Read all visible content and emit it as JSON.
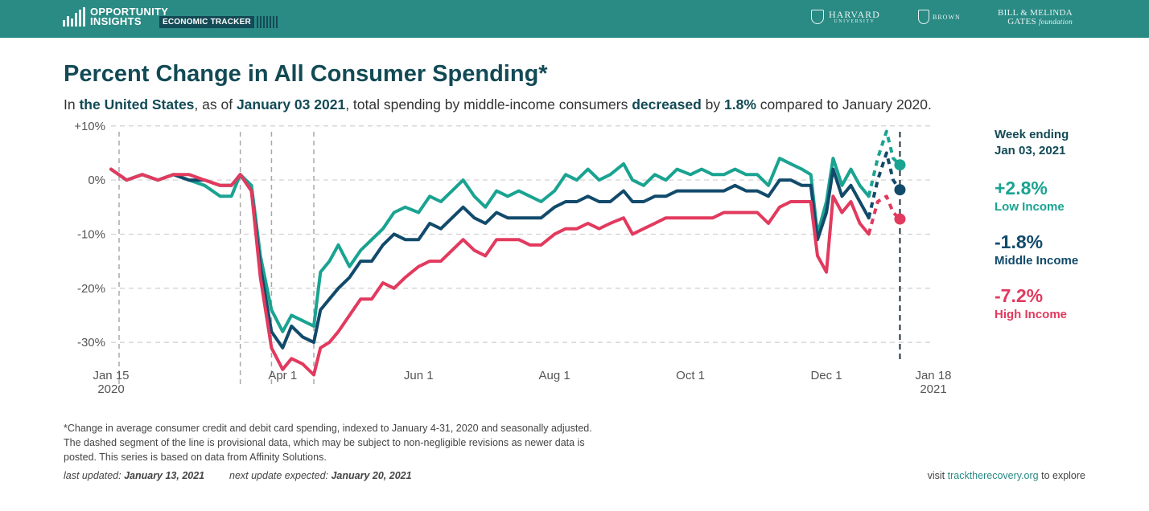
{
  "header": {
    "brand_line1": "OPPORTUNITY",
    "brand_line2": "INSIGHTS",
    "tracker_label": "ECONOMIC TRACKER",
    "partners": {
      "harvard": "HARVARD",
      "harvard_sub": "UNIVERSITY",
      "brown": "BROWN",
      "gates_line1": "BILL & MELINDA",
      "gates_line2": "GATES",
      "gates_line3": "foundation"
    },
    "bar_color": "#2a8a84"
  },
  "title": "Percent Change in All Consumer Spending*",
  "subtitle": {
    "p1": "In ",
    "region": "the United States",
    "p2": ", as of ",
    "date": "January 03 2021",
    "p3": ", total spending by middle-income consumers ",
    "direction": "decreased",
    "p4": " by ",
    "amount": "1.8%",
    "p5": " compared to January 2020."
  },
  "legend": {
    "heading_line1": "Week ending",
    "heading_line2": "Jan 03, 2021",
    "items": [
      {
        "value": "+2.8%",
        "name": "Low Income",
        "color": "#1aa391"
      },
      {
        "value": "-1.8%",
        "name": "Middle Income",
        "color": "#124a6b"
      },
      {
        "value": "-7.2%",
        "name": "High Income",
        "color": "#e23a5e"
      }
    ]
  },
  "footnote": {
    "line1": "*Change in average consumer credit and debit card spending, indexed to January 4-31, 2020 and seasonally adjusted.",
    "line2": "The dashed segment of the line is provisional data, which may be subject to non-negligible revisions as newer data is",
    "line3": "posted. This series is based on data from Affinity Solutions."
  },
  "updated": {
    "last_label": "last updated: ",
    "last_date": "January 13, 2021",
    "next_label": "next update expected: ",
    "next_date": "January 20, 2021"
  },
  "visit": {
    "prefix": "visit ",
    "link": "tracktherecovery.org",
    "suffix": " to explore"
  },
  "chart_data": {
    "type": "line",
    "title": "Percent Change in All Consumer Spending*",
    "x_axis": {
      "ticks": [
        {
          "date": "2020-01-15",
          "label": "Jan 15",
          "sublabel": "2020"
        },
        {
          "date": "2020-04-01",
          "label": "Apr 1",
          "sublabel": ""
        },
        {
          "date": "2020-06-01",
          "label": "Jun 1",
          "sublabel": ""
        },
        {
          "date": "2020-08-01",
          "label": "Aug 1",
          "sublabel": ""
        },
        {
          "date": "2020-10-01",
          "label": "Oct 1",
          "sublabel": ""
        },
        {
          "date": "2020-12-01",
          "label": "Dec 1",
          "sublabel": ""
        },
        {
          "date": "2021-01-18",
          "label": "Jan 18",
          "sublabel": "2021"
        }
      ],
      "range": [
        "2020-01-15",
        "2021-01-18"
      ]
    },
    "y_axis": {
      "ticks": [
        10,
        0,
        -10,
        -20,
        -30
      ],
      "tick_labels": [
        "+10%",
        "0%",
        "-10%",
        "-20%",
        "-30%"
      ],
      "range": [
        -38,
        11
      ]
    },
    "grid": "horizontal-dashed",
    "event_markers": [
      "2020-03-13",
      "2020-03-27",
      "2020-04-15"
    ],
    "latest_marker": "2021-01-03",
    "provisional_from": "2020-12-20",
    "series": [
      {
        "name": "Low Income",
        "color": "#1aa391",
        "points": [
          [
            "2020-01-15",
            2
          ],
          [
            "2020-01-22",
            0
          ],
          [
            "2020-01-29",
            1
          ],
          [
            "2020-02-05",
            0
          ],
          [
            "2020-02-12",
            1
          ],
          [
            "2020-02-19",
            0
          ],
          [
            "2020-02-26",
            -1
          ],
          [
            "2020-03-04",
            -3
          ],
          [
            "2020-03-09",
            -3
          ],
          [
            "2020-03-13",
            1
          ],
          [
            "2020-03-18",
            -1
          ],
          [
            "2020-03-22",
            -14
          ],
          [
            "2020-03-27",
            -24
          ],
          [
            "2020-04-01",
            -28
          ],
          [
            "2020-04-05",
            -25
          ],
          [
            "2020-04-10",
            -26
          ],
          [
            "2020-04-15",
            -27
          ],
          [
            "2020-04-18",
            -17
          ],
          [
            "2020-04-22",
            -15
          ],
          [
            "2020-04-26",
            -12
          ],
          [
            "2020-05-01",
            -16
          ],
          [
            "2020-05-06",
            -13
          ],
          [
            "2020-05-11",
            -11
          ],
          [
            "2020-05-16",
            -9
          ],
          [
            "2020-05-21",
            -6
          ],
          [
            "2020-05-26",
            -5
          ],
          [
            "2020-06-01",
            -6
          ],
          [
            "2020-06-06",
            -3
          ],
          [
            "2020-06-11",
            -4
          ],
          [
            "2020-06-16",
            -2
          ],
          [
            "2020-06-21",
            0
          ],
          [
            "2020-06-26",
            -3
          ],
          [
            "2020-07-01",
            -5
          ],
          [
            "2020-07-06",
            -2
          ],
          [
            "2020-07-11",
            -3
          ],
          [
            "2020-07-16",
            -2
          ],
          [
            "2020-07-21",
            -3
          ],
          [
            "2020-07-26",
            -4
          ],
          [
            "2020-08-01",
            -2
          ],
          [
            "2020-08-06",
            1
          ],
          [
            "2020-08-11",
            0
          ],
          [
            "2020-08-16",
            2
          ],
          [
            "2020-08-21",
            0
          ],
          [
            "2020-08-26",
            1
          ],
          [
            "2020-09-01",
            3
          ],
          [
            "2020-09-05",
            0
          ],
          [
            "2020-09-10",
            -1
          ],
          [
            "2020-09-15",
            1
          ],
          [
            "2020-09-20",
            0
          ],
          [
            "2020-09-25",
            2
          ],
          [
            "2020-10-01",
            1
          ],
          [
            "2020-10-06",
            2
          ],
          [
            "2020-10-11",
            1
          ],
          [
            "2020-10-16",
            1
          ],
          [
            "2020-10-21",
            2
          ],
          [
            "2020-10-26",
            1
          ],
          [
            "2020-10-31",
            1
          ],
          [
            "2020-11-05",
            -1
          ],
          [
            "2020-11-10",
            4
          ],
          [
            "2020-11-15",
            3
          ],
          [
            "2020-11-20",
            2
          ],
          [
            "2020-11-24",
            1
          ],
          [
            "2020-11-27",
            -10
          ],
          [
            "2020-12-01",
            -4
          ],
          [
            "2020-12-04",
            4
          ],
          [
            "2020-12-08",
            -1
          ],
          [
            "2020-12-12",
            2
          ],
          [
            "2020-12-16",
            -1
          ],
          [
            "2020-12-20",
            -3
          ],
          [
            "2020-12-24",
            4
          ],
          [
            "2020-12-28",
            9
          ],
          [
            "2020-12-31",
            4
          ],
          [
            "2021-01-03",
            2.8
          ]
        ]
      },
      {
        "name": "Middle Income",
        "color": "#124a6b",
        "points": [
          [
            "2020-01-15",
            2
          ],
          [
            "2020-01-22",
            0
          ],
          [
            "2020-01-29",
            1
          ],
          [
            "2020-02-05",
            0
          ],
          [
            "2020-02-12",
            1
          ],
          [
            "2020-02-19",
            0
          ],
          [
            "2020-02-26",
            0
          ],
          [
            "2020-03-04",
            -1
          ],
          [
            "2020-03-09",
            -1
          ],
          [
            "2020-03-13",
            1
          ],
          [
            "2020-03-18",
            -2
          ],
          [
            "2020-03-22",
            -16
          ],
          [
            "2020-03-27",
            -28
          ],
          [
            "2020-04-01",
            -31
          ],
          [
            "2020-04-05",
            -27
          ],
          [
            "2020-04-10",
            -29
          ],
          [
            "2020-04-15",
            -30
          ],
          [
            "2020-04-18",
            -24
          ],
          [
            "2020-04-22",
            -22
          ],
          [
            "2020-04-26",
            -20
          ],
          [
            "2020-05-01",
            -18
          ],
          [
            "2020-05-06",
            -15
          ],
          [
            "2020-05-11",
            -15
          ],
          [
            "2020-05-16",
            -12
          ],
          [
            "2020-05-21",
            -10
          ],
          [
            "2020-05-26",
            -11
          ],
          [
            "2020-06-01",
            -11
          ],
          [
            "2020-06-06",
            -8
          ],
          [
            "2020-06-11",
            -9
          ],
          [
            "2020-06-16",
            -7
          ],
          [
            "2020-06-21",
            -5
          ],
          [
            "2020-06-26",
            -7
          ],
          [
            "2020-07-01",
            -8
          ],
          [
            "2020-07-06",
            -6
          ],
          [
            "2020-07-11",
            -7
          ],
          [
            "2020-07-16",
            -7
          ],
          [
            "2020-07-21",
            -7
          ],
          [
            "2020-07-26",
            -7
          ],
          [
            "2020-08-01",
            -5
          ],
          [
            "2020-08-06",
            -4
          ],
          [
            "2020-08-11",
            -4
          ],
          [
            "2020-08-16",
            -3
          ],
          [
            "2020-08-21",
            -4
          ],
          [
            "2020-08-26",
            -4
          ],
          [
            "2020-09-01",
            -2
          ],
          [
            "2020-09-05",
            -4
          ],
          [
            "2020-09-10",
            -4
          ],
          [
            "2020-09-15",
            -3
          ],
          [
            "2020-09-20",
            -3
          ],
          [
            "2020-09-25",
            -2
          ],
          [
            "2020-10-01",
            -2
          ],
          [
            "2020-10-06",
            -2
          ],
          [
            "2020-10-11",
            -2
          ],
          [
            "2020-10-16",
            -2
          ],
          [
            "2020-10-21",
            -1
          ],
          [
            "2020-10-26",
            -2
          ],
          [
            "2020-10-31",
            -2
          ],
          [
            "2020-11-05",
            -3
          ],
          [
            "2020-11-10",
            0
          ],
          [
            "2020-11-15",
            0
          ],
          [
            "2020-11-20",
            -1
          ],
          [
            "2020-11-24",
            -1
          ],
          [
            "2020-11-27",
            -11
          ],
          [
            "2020-12-01",
            -6
          ],
          [
            "2020-12-04",
            2
          ],
          [
            "2020-12-08",
            -3
          ],
          [
            "2020-12-12",
            -1
          ],
          [
            "2020-12-16",
            -4
          ],
          [
            "2020-12-20",
            -7
          ],
          [
            "2020-12-24",
            0
          ],
          [
            "2020-12-28",
            5
          ],
          [
            "2020-12-31",
            0
          ],
          [
            "2021-01-03",
            -1.8
          ]
        ]
      },
      {
        "name": "High Income",
        "color": "#e23a5e",
        "points": [
          [
            "2020-01-15",
            2
          ],
          [
            "2020-01-22",
            0
          ],
          [
            "2020-01-29",
            1
          ],
          [
            "2020-02-05",
            0
          ],
          [
            "2020-02-12",
            1
          ],
          [
            "2020-02-19",
            1
          ],
          [
            "2020-02-26",
            0
          ],
          [
            "2020-03-04",
            -1
          ],
          [
            "2020-03-09",
            -1
          ],
          [
            "2020-03-13",
            1
          ],
          [
            "2020-03-18",
            -2
          ],
          [
            "2020-03-22",
            -18
          ],
          [
            "2020-03-27",
            -31
          ],
          [
            "2020-04-01",
            -35
          ],
          [
            "2020-04-05",
            -33
          ],
          [
            "2020-04-10",
            -34
          ],
          [
            "2020-04-15",
            -36
          ],
          [
            "2020-04-18",
            -31
          ],
          [
            "2020-04-22",
            -30
          ],
          [
            "2020-04-26",
            -28
          ],
          [
            "2020-05-01",
            -25
          ],
          [
            "2020-05-06",
            -22
          ],
          [
            "2020-05-11",
            -22
          ],
          [
            "2020-05-16",
            -19
          ],
          [
            "2020-05-21",
            -20
          ],
          [
            "2020-05-26",
            -18
          ],
          [
            "2020-06-01",
            -16
          ],
          [
            "2020-06-06",
            -15
          ],
          [
            "2020-06-11",
            -15
          ],
          [
            "2020-06-16",
            -13
          ],
          [
            "2020-06-21",
            -11
          ],
          [
            "2020-06-26",
            -13
          ],
          [
            "2020-07-01",
            -14
          ],
          [
            "2020-07-06",
            -11
          ],
          [
            "2020-07-11",
            -11
          ],
          [
            "2020-07-16",
            -11
          ],
          [
            "2020-07-21",
            -12
          ],
          [
            "2020-07-26",
            -12
          ],
          [
            "2020-08-01",
            -10
          ],
          [
            "2020-08-06",
            -9
          ],
          [
            "2020-08-11",
            -9
          ],
          [
            "2020-08-16",
            -8
          ],
          [
            "2020-08-21",
            -9
          ],
          [
            "2020-08-26",
            -8
          ],
          [
            "2020-09-01",
            -7
          ],
          [
            "2020-09-05",
            -10
          ],
          [
            "2020-09-10",
            -9
          ],
          [
            "2020-09-15",
            -8
          ],
          [
            "2020-09-20",
            -7
          ],
          [
            "2020-09-25",
            -7
          ],
          [
            "2020-10-01",
            -7
          ],
          [
            "2020-10-06",
            -7
          ],
          [
            "2020-10-11",
            -7
          ],
          [
            "2020-10-16",
            -6
          ],
          [
            "2020-10-21",
            -6
          ],
          [
            "2020-10-26",
            -6
          ],
          [
            "2020-10-31",
            -6
          ],
          [
            "2020-11-05",
            -8
          ],
          [
            "2020-11-10",
            -5
          ],
          [
            "2020-11-15",
            -4
          ],
          [
            "2020-11-20",
            -4
          ],
          [
            "2020-11-24",
            -4
          ],
          [
            "2020-11-27",
            -14
          ],
          [
            "2020-12-01",
            -17
          ],
          [
            "2020-12-04",
            -3
          ],
          [
            "2020-12-08",
            -6
          ],
          [
            "2020-12-12",
            -4
          ],
          [
            "2020-12-16",
            -8
          ],
          [
            "2020-12-20",
            -10
          ],
          [
            "2020-12-24",
            -4
          ],
          [
            "2020-12-28",
            -3
          ],
          [
            "2020-12-31",
            -6
          ],
          [
            "2021-01-03",
            -7.2
          ]
        ]
      }
    ]
  }
}
